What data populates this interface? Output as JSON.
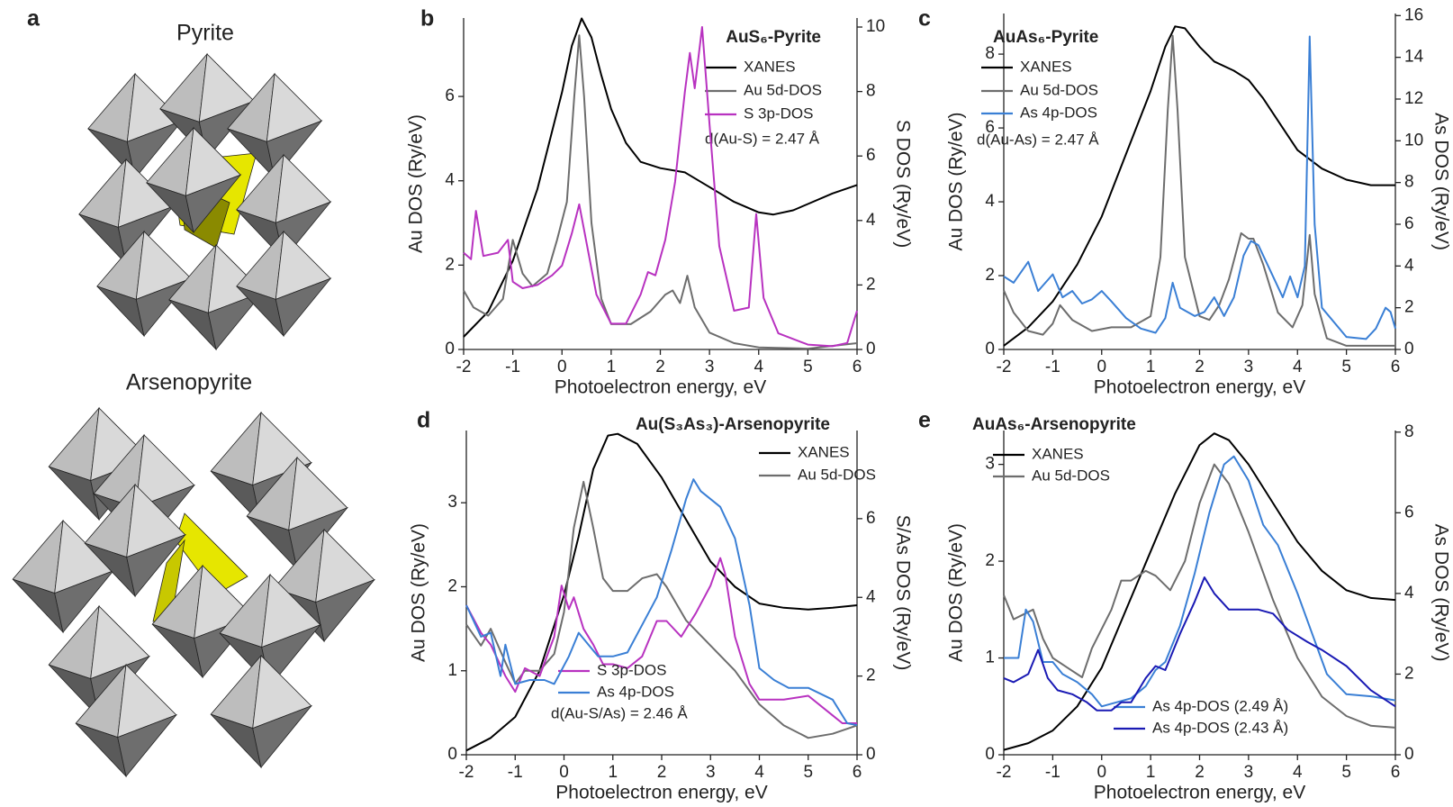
{
  "panel_a": {
    "label": "a",
    "titles": [
      "Pyrite",
      "Arsenopyrite"
    ]
  },
  "chart_data": [
    {
      "type": "line",
      "panel": "b",
      "title": "AuS₆-Pyrite",
      "xlabel": "Photoelectron energy, eV",
      "ylabel": "Au DOS (Ry/eV)",
      "y2label": "S DOS (Ry/eV)",
      "xlim": [
        -2,
        6
      ],
      "xticks": [
        -2,
        -1,
        0,
        1,
        2,
        3,
        4,
        5,
        6
      ],
      "ylim": [
        0,
        7.86
      ],
      "yticks": [
        0,
        2,
        4,
        6
      ],
      "y2lim": [
        0,
        10.28
      ],
      "y2ticks": [
        0,
        2,
        4,
        6,
        8,
        10
      ],
      "annotation": "d(Au-S) = 2.47 Å",
      "series": [
        {
          "name": "XANES",
          "color": "#000000",
          "x": [
            -2,
            -1.5,
            -1,
            -0.5,
            0,
            0.2,
            0.4,
            0.6,
            0.8,
            1,
            1.3,
            1.6,
            2,
            2.5,
            3,
            3.5,
            4,
            4.3,
            4.7,
            5,
            5.5,
            6
          ],
          "values": [
            0.3,
            0.9,
            2.1,
            3.8,
            6.1,
            7.2,
            7.85,
            7.4,
            6.5,
            5.7,
            4.9,
            4.45,
            4.3,
            4.2,
            3.85,
            3.5,
            3.25,
            3.2,
            3.3,
            3.45,
            3.7,
            3.9
          ]
        },
        {
          "name": "Au 5d-DOS",
          "color": "#6d6d6d",
          "x": [
            -2,
            -1.8,
            -1.5,
            -1.2,
            -1,
            -0.8,
            -0.6,
            -0.3,
            -0.1,
            0.1,
            0.25,
            0.35,
            0.45,
            0.6,
            0.8,
            1,
            1.4,
            1.8,
            2.1,
            2.25,
            2.4,
            2.55,
            2.7,
            3,
            3.5,
            4,
            5,
            6
          ],
          "values": [
            1.4,
            1.0,
            0.8,
            1.2,
            2.6,
            1.8,
            1.5,
            1.8,
            2.6,
            3.5,
            6.0,
            7.45,
            6.0,
            3.0,
            1.2,
            0.6,
            0.6,
            0.9,
            1.3,
            1.4,
            1.1,
            1.75,
            1.0,
            0.4,
            0.15,
            0.05,
            0.02,
            0.15
          ]
        },
        {
          "name": "S 3p-DOS",
          "color": "#b832c0",
          "axis": "y2",
          "x": [
            -2,
            -1.85,
            -1.75,
            -1.6,
            -1.3,
            -1.1,
            -1,
            -0.8,
            -0.5,
            -0.2,
            0,
            0.2,
            0.35,
            0.5,
            0.7,
            1,
            1.3,
            1.6,
            1.75,
            1.9,
            2.1,
            2.3,
            2.5,
            2.6,
            2.7,
            2.85,
            3,
            3.2,
            3.5,
            3.8,
            3.95,
            4.1,
            4.4,
            5,
            5.5,
            5.8,
            6
          ],
          "values": [
            3.0,
            2.8,
            4.3,
            2.9,
            3.0,
            3.4,
            2.1,
            1.9,
            2.0,
            2.3,
            2.6,
            3.6,
            4.5,
            3.3,
            1.7,
            0.8,
            0.8,
            1.7,
            2.4,
            2.3,
            3.4,
            5.2,
            8.0,
            9.2,
            8.1,
            10.0,
            7.0,
            3.2,
            1.2,
            1.3,
            4.2,
            1.6,
            0.5,
            0.15,
            0.1,
            0.2,
            1.2
          ]
        }
      ]
    },
    {
      "type": "line",
      "panel": "c",
      "title": "AuAs₆-Pyrite",
      "xlabel": "Photoelectron energy, eV",
      "ylabel": "Au DOS (Ry/eV)",
      "y2label": "As DOS (Ry/eV)",
      "xlim": [
        -2,
        6
      ],
      "xticks": [
        -2,
        -1,
        0,
        1,
        2,
        3,
        4,
        5,
        6
      ],
      "ylim": [
        0,
        9.1
      ],
      "yticks": [
        0,
        2,
        4,
        6,
        8
      ],
      "y2lim": [
        0,
        16.1
      ],
      "y2ticks": [
        0,
        2,
        4,
        6,
        8,
        10,
        12,
        14,
        16
      ],
      "annotation": "d(Au-As) = 2.47 Å",
      "series": [
        {
          "name": "XANES",
          "color": "#000000",
          "x": [
            -2,
            -1.5,
            -1,
            -0.5,
            0,
            0.5,
            1,
            1.3,
            1.5,
            1.7,
            2,
            2.3,
            2.7,
            3,
            3.3,
            3.7,
            4,
            4.5,
            5,
            5.5,
            6
          ],
          "values": [
            0.1,
            0.6,
            1.3,
            2.3,
            3.6,
            5.3,
            7.0,
            8.2,
            8.75,
            8.7,
            8.2,
            7.8,
            7.55,
            7.3,
            6.8,
            6.0,
            5.4,
            4.9,
            4.6,
            4.45,
            4.45
          ]
        },
        {
          "name": "Au 5d-DOS",
          "color": "#6d6d6d",
          "x": [
            -2,
            -1.8,
            -1.5,
            -1.2,
            -1,
            -0.85,
            -0.6,
            -0.2,
            0.2,
            0.6,
            1,
            1.2,
            1.35,
            1.45,
            1.55,
            1.7,
            2,
            2.2,
            2.4,
            2.6,
            2.85,
            3,
            3.1,
            3.3,
            3.6,
            3.9,
            4.1,
            4.25,
            4.35,
            4.6,
            5,
            6
          ],
          "values": [
            1.6,
            1.0,
            0.5,
            0.4,
            0.7,
            1.2,
            0.8,
            0.5,
            0.6,
            0.6,
            0.9,
            2.5,
            6.5,
            8.5,
            6.5,
            2.5,
            0.9,
            0.8,
            1.2,
            1.9,
            3.15,
            3.0,
            3.0,
            2.3,
            1.0,
            0.6,
            1.2,
            3.1,
            1.5,
            0.3,
            0.1,
            0.1
          ]
        },
        {
          "name": "As 4p-DOS",
          "color": "#3a7fd5",
          "axis": "y2",
          "x": [
            -2,
            -1.8,
            -1.5,
            -1.3,
            -1,
            -0.8,
            -0.6,
            -0.4,
            -0.2,
            0,
            0.2,
            0.5,
            0.8,
            1.1,
            1.3,
            1.45,
            1.6,
            1.9,
            2.1,
            2.3,
            2.5,
            2.7,
            2.9,
            3.05,
            3.2,
            3.5,
            3.7,
            3.85,
            4,
            4.15,
            4.25,
            4.35,
            4.5,
            5,
            5.4,
            5.6,
            5.8,
            5.9,
            6
          ],
          "values": [
            3.5,
            3.2,
            4.2,
            2.8,
            3.6,
            2.5,
            2.8,
            2.2,
            2.4,
            2.8,
            2.3,
            1.5,
            1.0,
            0.8,
            1.5,
            3.2,
            2.0,
            1.6,
            1.8,
            2.5,
            1.6,
            2.5,
            4.5,
            5.2,
            5.0,
            3.5,
            2.5,
            3.5,
            2.5,
            4.0,
            15.0,
            6.0,
            2.0,
            0.6,
            0.5,
            1.0,
            2.0,
            1.8,
            1.0
          ]
        }
      ]
    },
    {
      "type": "line",
      "panel": "d",
      "title": "Au(S₃As₃)-Arsenopyrite",
      "xlabel": "Photoelectron energy, eV",
      "ylabel": "Au DOS (Ry/eV)",
      "y2label": "S/As DOS (Ry/eV)",
      "xlim": [
        -2,
        6
      ],
      "xticks": [
        -2,
        -1,
        0,
        1,
        2,
        3,
        4,
        5,
        6
      ],
      "ylim": [
        0,
        3.86
      ],
      "yticks": [
        0,
        1,
        2,
        3
      ],
      "y2lim": [
        0,
        8.24
      ],
      "y2ticks": [
        0,
        2,
        4,
        6
      ],
      "annotation": "d(Au-S/As) = 2.46 Å",
      "series": [
        {
          "name": "XANES",
          "color": "#000000",
          "x": [
            -2,
            -1.5,
            -1,
            -0.5,
            0,
            0.3,
            0.6,
            0.9,
            1.1,
            1.5,
            2,
            2.5,
            3,
            3.5,
            4,
            4.5,
            5,
            5.5,
            6
          ],
          "values": [
            0.05,
            0.2,
            0.45,
            1.0,
            1.9,
            2.6,
            3.4,
            3.8,
            3.82,
            3.7,
            3.3,
            2.8,
            2.3,
            2.0,
            1.8,
            1.75,
            1.73,
            1.75,
            1.78
          ]
        },
        {
          "name": "Au 5d-DOS",
          "color": "#6d6d6d",
          "x": [
            -2,
            -1.7,
            -1.5,
            -1.2,
            -1,
            -0.8,
            -0.5,
            -0.2,
            0,
            0.2,
            0.4,
            0.6,
            0.8,
            1,
            1.3,
            1.6,
            1.9,
            2.1,
            2.5,
            3,
            3.5,
            4,
            4.5,
            5,
            5.5,
            6
          ],
          "values": [
            1.55,
            1.3,
            1.5,
            1.1,
            0.85,
            1.0,
            1.0,
            1.2,
            1.7,
            2.7,
            3.25,
            2.7,
            2.1,
            1.95,
            1.95,
            2.1,
            2.15,
            2.0,
            1.6,
            1.3,
            1.0,
            0.6,
            0.35,
            0.2,
            0.25,
            0.35
          ]
        },
        {
          "name": "S 3p-DOS",
          "color": "#b832c0",
          "axis": "y2",
          "x": [
            -2,
            -1.7,
            -1.5,
            -1.2,
            -1,
            -0.8,
            -0.5,
            -0.2,
            -0.05,
            0.1,
            0.2,
            0.4,
            0.6,
            0.8,
            1,
            1.3,
            1.6,
            1.9,
            2.1,
            2.4,
            2.7,
            3,
            3.2,
            3.3,
            3.5,
            3.8,
            4,
            4.5,
            5,
            5.5,
            5.7,
            6
          ],
          "values": [
            3.8,
            3.1,
            2.8,
            2.0,
            1.6,
            2.2,
            2.0,
            3.0,
            4.3,
            3.7,
            4.0,
            3.2,
            2.8,
            2.3,
            2.3,
            2.2,
            2.5,
            3.4,
            3.4,
            3.0,
            3.6,
            4.3,
            5.0,
            4.6,
            3.0,
            1.8,
            1.4,
            1.4,
            1.5,
            1.0,
            0.8,
            0.8
          ]
        },
        {
          "name": "As 4p-DOS",
          "color": "#3a7fd5",
          "axis": "y2",
          "x": [
            -2,
            -1.7,
            -1.5,
            -1.3,
            -1.2,
            -1,
            -0.7,
            -0.4,
            -0.2,
            0.1,
            0.3,
            0.5,
            0.7,
            1,
            1.3,
            1.6,
            1.9,
            2.2,
            2.5,
            2.65,
            2.8,
            3.2,
            3.5,
            3.8,
            4,
            4.3,
            4.6,
            5,
            5.5,
            5.8,
            6
          ],
          "values": [
            3.8,
            3.0,
            3.1,
            2.0,
            2.8,
            1.8,
            1.9,
            1.9,
            1.8,
            2.5,
            3.1,
            2.8,
            2.5,
            2.5,
            2.6,
            3.3,
            4.0,
            5.2,
            6.5,
            7.0,
            6.7,
            6.3,
            5.5,
            3.8,
            2.2,
            1.9,
            1.7,
            1.7,
            1.4,
            0.8,
            0.75
          ]
        }
      ]
    },
    {
      "type": "line",
      "panel": "e",
      "title": "AuAs₆-Arsenopyrite",
      "xlabel": "Photoelectron energy, eV",
      "ylabel": "Au DOS (Ry/eV)",
      "y2label": "As DOS (Ry/eV)",
      "xlim": [
        -2,
        6
      ],
      "xticks": [
        -2,
        -1,
        0,
        1,
        2,
        3,
        4,
        5,
        6
      ],
      "ylim": [
        0,
        3.35
      ],
      "yticks": [
        0,
        1,
        2,
        3
      ],
      "y2lim": [
        0,
        8.04
      ],
      "y2ticks": [
        0,
        2,
        4,
        6,
        8
      ],
      "series": [
        {
          "name": "XANES",
          "color": "#000000",
          "x": [
            -2,
            -1.5,
            -1,
            -0.5,
            0,
            0.5,
            1,
            1.5,
            2,
            2.3,
            2.6,
            3,
            3.5,
            4,
            4.5,
            5,
            5.5,
            6
          ],
          "values": [
            0.05,
            0.12,
            0.25,
            0.5,
            0.9,
            1.5,
            2.1,
            2.7,
            3.2,
            3.32,
            3.25,
            3.0,
            2.6,
            2.2,
            1.9,
            1.7,
            1.62,
            1.6
          ]
        },
        {
          "name": "Au 5d-DOS",
          "color": "#6d6d6d",
          "x": [
            -2,
            -1.8,
            -1.6,
            -1.4,
            -1.2,
            -1,
            -0.7,
            -0.4,
            -0.2,
            0.2,
            0.4,
            0.6,
            0.9,
            1.1,
            1.4,
            1.7,
            2,
            2.3,
            2.6,
            3,
            3.5,
            4,
            4.5,
            5,
            5.5,
            6
          ],
          "values": [
            1.65,
            1.4,
            1.45,
            1.5,
            1.2,
            1.0,
            0.9,
            0.8,
            1.1,
            1.5,
            1.8,
            1.8,
            1.9,
            1.85,
            1.7,
            2.0,
            2.6,
            3.0,
            2.8,
            2.3,
            1.6,
            1.0,
            0.6,
            0.4,
            0.3,
            0.28
          ]
        },
        {
          "name": "As 4p-DOS (2.49 Å)",
          "color": "#3a7fd5",
          "axis": "y2",
          "x": [
            -2,
            -1.7,
            -1.55,
            -1.4,
            -1.2,
            -1,
            -0.8,
            -0.5,
            -0.2,
            0,
            0.3,
            0.6,
            0.9,
            1.1,
            1.3,
            1.6,
            1.9,
            2.2,
            2.5,
            2.7,
            3,
            3.3,
            3.6,
            4,
            4.3,
            4.6,
            5,
            5.5,
            6
          ],
          "values": [
            2.4,
            2.4,
            3.6,
            3.3,
            2.3,
            2.3,
            2.0,
            1.8,
            1.5,
            1.2,
            1.3,
            1.4,
            1.7,
            2.1,
            2.3,
            3.2,
            4.5,
            6.0,
            7.2,
            7.4,
            6.8,
            5.7,
            5.2,
            4.0,
            3.0,
            2.0,
            1.5,
            1.45,
            1.35
          ]
        },
        {
          "name": "As 4p-DOS (2.43 Å)",
          "color": "#1a1ab4",
          "axis": "y2",
          "x": [
            -2,
            -1.8,
            -1.5,
            -1.3,
            -1.1,
            -0.9,
            -0.6,
            -0.3,
            -0.1,
            0.2,
            0.4,
            0.6,
            0.9,
            1.1,
            1.3,
            1.6,
            1.9,
            2.1,
            2.3,
            2.6,
            2.9,
            3.2,
            3.5,
            3.8,
            4.2,
            4.5,
            5,
            5.5,
            6
          ],
          "values": [
            1.9,
            1.8,
            2.0,
            2.6,
            1.9,
            1.6,
            1.5,
            1.3,
            1.1,
            1.1,
            1.3,
            1.3,
            1.9,
            2.2,
            2.1,
            3.0,
            3.8,
            4.4,
            4.0,
            3.6,
            3.6,
            3.6,
            3.5,
            3.1,
            2.8,
            2.6,
            2.2,
            1.6,
            1.2
          ]
        }
      ]
    }
  ]
}
